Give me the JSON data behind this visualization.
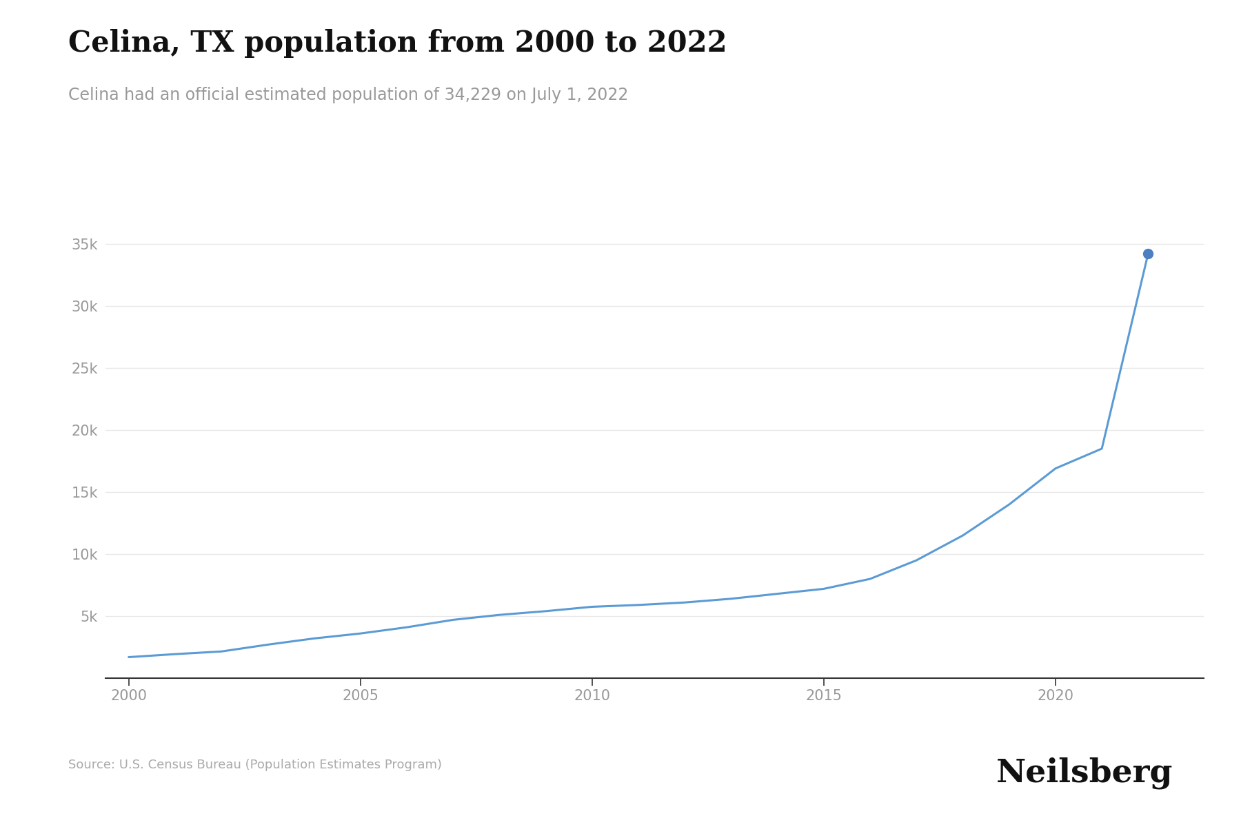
{
  "title": "Celina, TX population from 2000 to 2022",
  "subtitle": "Celina had an official estimated population of 34,229 on July 1, 2022",
  "source_text": "Source: U.S. Census Bureau (Population Estimates Program)",
  "brand": "Neilsberg",
  "years": [
    2000,
    2001,
    2002,
    2003,
    2004,
    2005,
    2006,
    2007,
    2008,
    2009,
    2010,
    2011,
    2012,
    2013,
    2014,
    2015,
    2016,
    2017,
    2018,
    2019,
    2020,
    2021,
    2022
  ],
  "population": [
    1693,
    1936,
    2150,
    2700,
    3200,
    3600,
    4100,
    4700,
    5100,
    5400,
    5753,
    5900,
    6100,
    6400,
    6800,
    7200,
    8000,
    9500,
    11500,
    14000,
    16903,
    18500,
    34229
  ],
  "line_color": "#5b9bd5",
  "dot_color": "#4a7fc1",
  "grid_color": "#e8e8e8",
  "bottom_spine_color": "#333333",
  "background_color": "#ffffff",
  "title_fontsize": 30,
  "subtitle_fontsize": 17,
  "tick_fontsize": 15,
  "source_fontsize": 13,
  "brand_fontsize": 34,
  "xlim": [
    1999.5,
    2023.2
  ],
  "ylim": [
    0,
    38000
  ],
  "yticks": [
    5000,
    10000,
    15000,
    20000,
    25000,
    30000,
    35000
  ],
  "xticks": [
    2000,
    2005,
    2010,
    2015,
    2020
  ],
  "tick_color": "#aaaaaa",
  "label_color": "#999999"
}
